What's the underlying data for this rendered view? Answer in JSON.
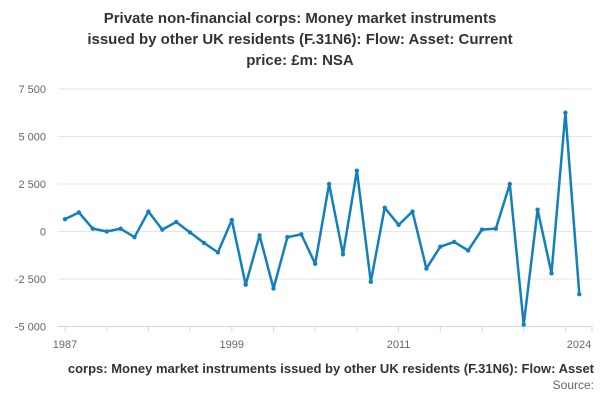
{
  "header": {
    "title_display": "Private non-financial corps: Money market instruments\nissued by other UK residents (F.31N6): Flow: Asset: Current\nprice: £m: NSA"
  },
  "footer": {
    "ticker_text": "corps: Money market instruments issued by other UK residents (F.31N6): Flow: Asset",
    "source_label": "Source:"
  },
  "colors": {
    "line": "#1380be",
    "grid": "#e6e6e6",
    "axis_line": "#ccd6eb",
    "axis_text": "#666666",
    "title_text": "#333333"
  },
  "chart_data": {
    "type": "line",
    "title": "Private non-financial corps: Money market instruments issued by other UK residents (F.31N6): Flow: Asset: Current price: £m: NSA",
    "xlabel": "",
    "ylabel": "",
    "unit": "£m",
    "grid": true,
    "legend": false,
    "marker": "circle",
    "line_color": "#1380be",
    "xlim": [
      1987,
      2024
    ],
    "ylim": [
      -5000,
      7500
    ],
    "y_ticks": [
      7500,
      5000,
      2500,
      0,
      -2500,
      -5000
    ],
    "y_tick_labels": [
      "7 500",
      "5 000",
      "2 500",
      "0",
      "-2 500",
      "-5 000"
    ],
    "x_labeled_ticks": [
      {
        "year": 1987,
        "label": "1987"
      },
      {
        "year": 1999,
        "label": "1999"
      },
      {
        "year": 2011,
        "label": "2011"
      },
      {
        "year": 2024,
        "label": "2024"
      }
    ],
    "minor_tick_step_years": 3,
    "x": [
      1987,
      1988,
      1989,
      1990,
      1991,
      1992,
      1993,
      1994,
      1995,
      1996,
      1997,
      1998,
      1999,
      2000,
      2001,
      2002,
      2003,
      2004,
      2005,
      2006,
      2007,
      2008,
      2009,
      2010,
      2011,
      2012,
      2013,
      2014,
      2015,
      2016,
      2017,
      2018,
      2019,
      2020,
      2021,
      2022,
      2023,
      2024
    ],
    "values": [
      650,
      1000,
      150,
      0,
      150,
      -300,
      1050,
      100,
      500,
      -50,
      -600,
      -1100,
      600,
      -2800,
      -200,
      -3000,
      -300,
      -150,
      -1700,
      2500,
      -1200,
      3200,
      -2650,
      1250,
      350,
      1050,
      -1950,
      -800,
      -550,
      -1000,
      100,
      150,
      2500,
      -4900,
      1150,
      -2200,
      6250,
      -3300
    ]
  }
}
